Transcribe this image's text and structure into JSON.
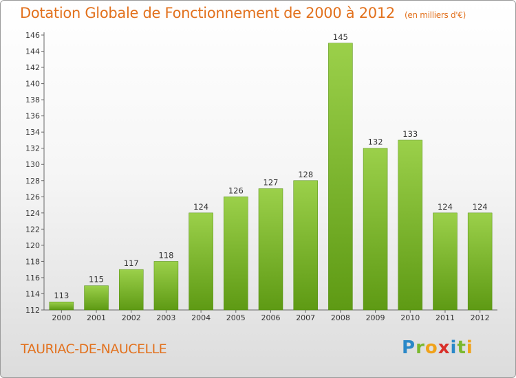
{
  "title": "Dotation Globale de Fonctionnement de 2000 à 2012",
  "subtitle": "(en milliers d'€)",
  "commune": "TAURIAC-DE-NAUCELLE",
  "logo": {
    "letters": [
      "P",
      "r",
      "o",
      "x",
      "i",
      "t",
      "i"
    ],
    "colors": [
      "#2a88c8",
      "#7ab82e",
      "#f0a21a",
      "#d9302a",
      "#2a88c8",
      "#7ab82e",
      "#f0a21a"
    ]
  },
  "colors": {
    "title": "#e2711d",
    "bar_light": "#9bd04a",
    "bar_dark": "#5e9a14"
  },
  "chart_data": {
    "type": "bar",
    "categories": [
      "2000",
      "2001",
      "2002",
      "2003",
      "2004",
      "2005",
      "2006",
      "2007",
      "2008",
      "2009",
      "2010",
      "2011",
      "2012"
    ],
    "values": [
      113,
      115,
      117,
      118,
      124,
      126,
      127,
      128,
      145,
      132,
      133,
      124,
      124
    ],
    "ylim": [
      112,
      146
    ],
    "yticks": [
      112,
      114,
      116,
      118,
      120,
      122,
      124,
      126,
      128,
      130,
      132,
      134,
      136,
      138,
      140,
      142,
      144,
      146
    ],
    "grid": false,
    "data_labels": true
  }
}
